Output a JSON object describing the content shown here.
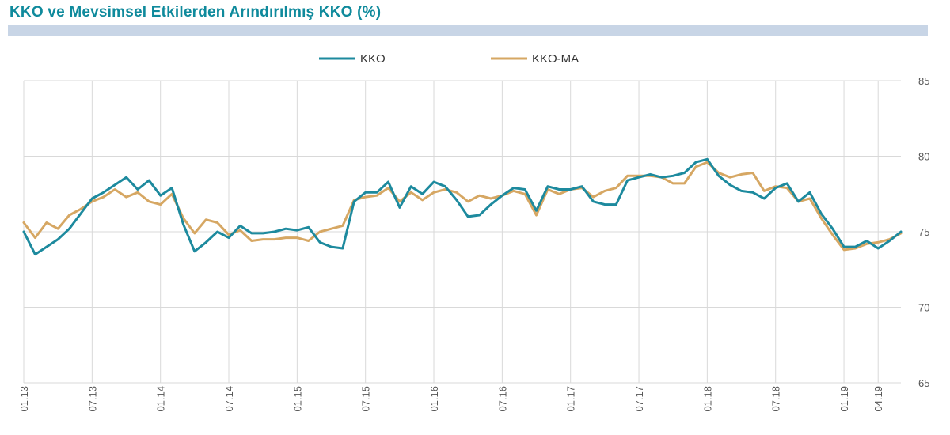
{
  "header": {
    "title": "KKO ve Mevsimsel Etkilerden Arındırılmış KKO (%)"
  },
  "colors": {
    "kko": "#1d8a9e",
    "kko_ma": "#d6a763",
    "title": "#0f8a9c",
    "title_bar": "#c8d5e6",
    "grid": "#d9d9d9"
  },
  "chart_data": {
    "type": "line",
    "title": "KKO ve Mevsimsel Etkilerden Arındırılmış KKO (%)",
    "xlabel": "",
    "ylabel": "",
    "ylim": [
      65,
      85
    ],
    "yticks": [
      65,
      70,
      75,
      80,
      85
    ],
    "grid": true,
    "legend": "top-center",
    "x_tick_labels": [
      "01.13",
      "07.13",
      "01.14",
      "07.14",
      "01.15",
      "07.15",
      "01.16",
      "07.16",
      "01.17",
      "07.17",
      "01.18",
      "07.18",
      "01.19",
      "04.19"
    ],
    "x_tick_months": [
      0,
      6,
      12,
      18,
      24,
      30,
      36,
      42,
      48,
      54,
      60,
      66,
      72,
      75
    ],
    "series": [
      {
        "name": "KKO",
        "color": "#1d8a9e",
        "values": [
          75.0,
          73.5,
          74.0,
          74.5,
          75.2,
          76.2,
          77.2,
          77.6,
          78.1,
          78.6,
          77.8,
          78.4,
          77.4,
          77.9,
          75.5,
          73.7,
          74.3,
          75.0,
          74.6,
          75.4,
          74.9,
          74.9,
          75.0,
          75.2,
          75.1,
          75.3,
          74.3,
          74.0,
          73.9,
          77.0,
          77.6,
          77.6,
          78.3,
          76.6,
          78.0,
          77.5,
          78.3,
          78.0,
          77.1,
          76.0,
          76.1,
          76.8,
          77.4,
          77.9,
          77.8,
          76.4,
          78.0,
          77.8,
          77.8,
          78.0,
          77.0,
          76.8,
          76.8,
          78.4,
          78.6,
          78.8,
          78.6,
          78.7,
          78.9,
          79.6,
          79.8,
          78.7,
          78.1,
          77.7,
          77.6,
          77.2,
          77.9,
          78.2,
          77.0,
          77.6,
          76.2,
          75.2,
          74.0,
          74.0,
          74.4,
          73.9,
          74.4,
          75.0
        ]
      },
      {
        "name": "KKO-MA",
        "color": "#d6a763",
        "values": [
          75.6,
          74.6,
          75.6,
          75.2,
          76.1,
          76.5,
          77.0,
          77.3,
          77.8,
          77.3,
          77.6,
          77.0,
          76.8,
          77.5,
          75.9,
          74.9,
          75.8,
          75.6,
          74.8,
          75.1,
          74.4,
          74.5,
          74.5,
          74.6,
          74.6,
          74.4,
          75.0,
          75.2,
          75.4,
          77.1,
          77.3,
          77.4,
          77.9,
          77.0,
          77.6,
          77.1,
          77.6,
          77.8,
          77.6,
          77.0,
          77.4,
          77.2,
          77.4,
          77.7,
          77.5,
          76.1,
          77.8,
          77.5,
          77.8,
          77.9,
          77.3,
          77.7,
          77.9,
          78.7,
          78.7,
          78.7,
          78.6,
          78.2,
          78.2,
          79.3,
          79.6,
          78.9,
          78.6,
          78.8,
          78.9,
          77.7,
          78.0,
          77.9,
          77.0,
          77.2,
          75.9,
          74.8,
          73.8,
          73.9,
          74.2,
          74.3,
          74.5,
          74.9
        ]
      }
    ]
  }
}
